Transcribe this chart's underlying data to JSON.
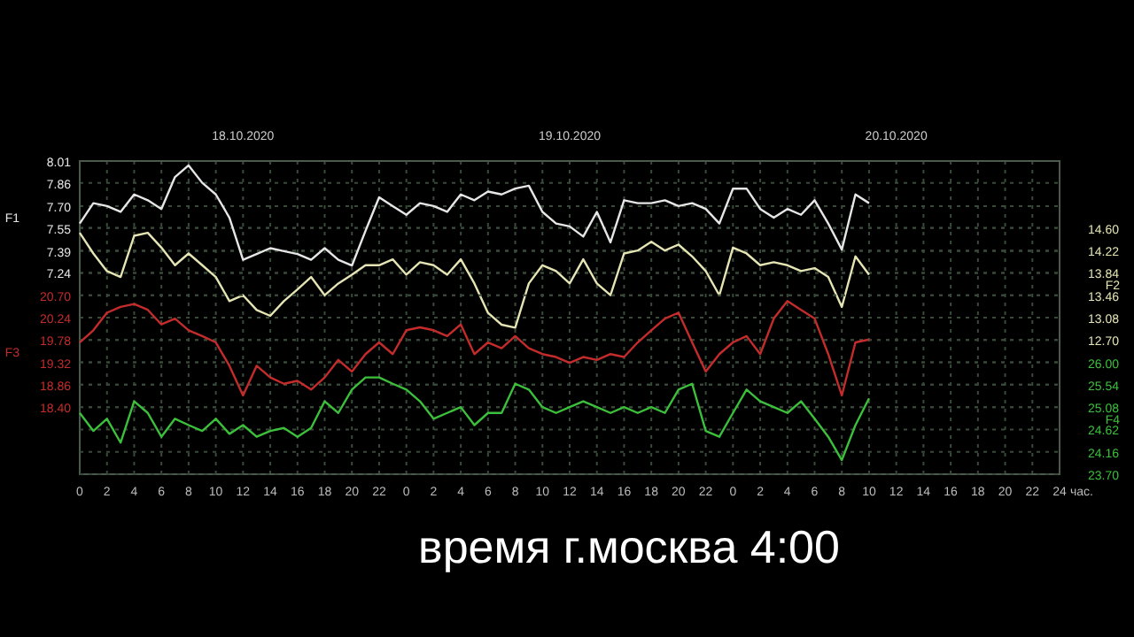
{
  "chart_data": [
    {
      "type": "line",
      "annotations": [
        "время г.москва 4:00"
      ],
      "ylabel": "F1",
      "y2label": "F2",
      "x": [
        "2020-10-18T00:00",
        "2020-10-18T01:00",
        "2020-10-18T02:00",
        "2020-10-18T03:00",
        "2020-10-18T04:00",
        "2020-10-18T05:00",
        "2020-10-18T06:00",
        "2020-10-18T07:00",
        "2020-10-18T08:00",
        "2020-10-18T09:00",
        "2020-10-18T10:00",
        "2020-10-18T11:00",
        "2020-10-18T12:00",
        "2020-10-18T13:00",
        "2020-10-18T14:00",
        "2020-10-18T15:00",
        "2020-10-18T16:00",
        "2020-10-18T17:00",
        "2020-10-18T18:00",
        "2020-10-18T19:00",
        "2020-10-18T20:00",
        "2020-10-18T21:00",
        "2020-10-18T22:00",
        "2020-10-18T23:00",
        "2020-10-19T00:00",
        "2020-10-19T01:00",
        "2020-10-19T02:00",
        "2020-10-19T03:00",
        "2020-10-19T04:00",
        "2020-10-19T05:00",
        "2020-10-19T06:00",
        "2020-10-19T07:00",
        "2020-10-19T08:00",
        "2020-10-19T09:00",
        "2020-10-19T10:00",
        "2020-10-19T11:00",
        "2020-10-19T12:00",
        "2020-10-19T13:00",
        "2020-10-19T14:00",
        "2020-10-19T15:00",
        "2020-10-19T16:00",
        "2020-10-19T17:00",
        "2020-10-19T18:00",
        "2020-10-19T19:00",
        "2020-10-19T20:00",
        "2020-10-19T21:00",
        "2020-10-19T22:00",
        "2020-10-19T23:00",
        "2020-10-20T00:00",
        "2020-10-20T01:00",
        "2020-10-20T02:00",
        "2020-10-20T03:00",
        "2020-10-20T04:00",
        "2020-10-20T05:00",
        "2020-10-20T06:00",
        "2020-10-20T07:00",
        "2020-10-20T08:00",
        "2020-10-20T09:00",
        "2020-10-20T10:00"
      ],
      "xlim": [
        "2020-10-18T00:00",
        "2020-10-21T00:00"
      ],
      "xticks": [
        {
          "value": "2020-10-18T00:00",
          "label": "0"
        },
        {
          "value": "2020-10-18T02:00",
          "label": "2"
        },
        {
          "value": "2020-10-18T04:00",
          "label": "4"
        },
        {
          "value": "2020-10-18T06:00",
          "label": "6"
        },
        {
          "value": "2020-10-18T08:00",
          "label": "8"
        },
        {
          "value": "2020-10-18T10:00",
          "label": "10"
        },
        {
          "value": "2020-10-18T12:00",
          "label": "12"
        },
        {
          "value": "2020-10-18T14:00",
          "label": "14"
        },
        {
          "value": "2020-10-18T16:00",
          "label": "16"
        },
        {
          "value": "2020-10-18T18:00",
          "label": "18"
        },
        {
          "value": "2020-10-18T20:00",
          "label": "20"
        },
        {
          "value": "2020-10-18T22:00",
          "label": "22"
        },
        {
          "value": "2020-10-19T00:00",
          "label": "0"
        },
        {
          "value": "2020-10-19T02:00",
          "label": "2"
        },
        {
          "value": "2020-10-19T04:00",
          "label": "4"
        },
        {
          "value": "2020-10-19T06:00",
          "label": "6"
        },
        {
          "value": "2020-10-19T08:00",
          "label": "8"
        },
        {
          "value": "2020-10-19T10:00",
          "label": "10"
        },
        {
          "value": "2020-10-19T12:00",
          "label": "12"
        },
        {
          "value": "2020-10-19T14:00",
          "label": "14"
        },
        {
          "value": "2020-10-19T16:00",
          "label": "16"
        },
        {
          "value": "2020-10-19T18:00",
          "label": "18"
        },
        {
          "value": "2020-10-19T20:00",
          "label": "20"
        },
        {
          "value": "2020-10-19T22:00",
          "label": "22"
        },
        {
          "value": "2020-10-20T00:00",
          "label": "0"
        },
        {
          "value": "2020-10-20T02:00",
          "label": "2"
        },
        {
          "value": "2020-10-20T04:00",
          "label": "4"
        },
        {
          "value": "2020-10-20T06:00",
          "label": "6"
        },
        {
          "value": "2020-10-20T08:00",
          "label": "8"
        },
        {
          "value": "2020-10-20T10:00",
          "label": "10"
        },
        {
          "value": "2020-10-20T12:00",
          "label": "12"
        },
        {
          "value": "2020-10-20T14:00",
          "label": "14"
        },
        {
          "value": "2020-10-20T16:00",
          "label": "16"
        },
        {
          "value": "2020-10-20T18:00",
          "label": "18"
        },
        {
          "value": "2020-10-20T20:00",
          "label": "20"
        },
        {
          "value": "2020-10-20T22:00",
          "label": "22"
        },
        {
          "value": "2020-10-21T00:00",
          "label": "24"
        }
      ],
      "xlabel": "час.",
      "x2lim": [
        "2020-10-18T00:00",
        "2020-10-21T00:00"
      ],
      "x2ticks": [
        {
          "value": "2020-10-18T12:00",
          "label": "18.10.2020"
        },
        {
          "value": "2020-10-19T12:00",
          "label": "19.10.2020"
        },
        {
          "value": "2020-10-20T12:00",
          "label": "20.10.2020"
        }
      ],
      "ylim": [
        5.854,
        8.01
      ],
      "yticks": [
        {
          "value": 8.01,
          "label": "8.01"
        },
        {
          "value": 7.86,
          "label": "7.86"
        },
        {
          "value": 7.7,
          "label": "7.70"
        },
        {
          "value": 7.55,
          "label": "7.55"
        },
        {
          "value": 7.39,
          "label": "7.39"
        },
        {
          "value": 7.24,
          "label": "7.24"
        }
      ],
      "y2lim": [
        10.42,
        15.74
      ],
      "y2ticks": [
        {
          "value": 14.6,
          "label": "14.60"
        },
        {
          "value": 14.22,
          "label": "14.22"
        },
        {
          "value": 13.84,
          "label": "13.84"
        },
        {
          "value": 13.46,
          "label": "13.46"
        },
        {
          "value": 13.08,
          "label": "13.08"
        },
        {
          "value": 12.7,
          "label": "12.70"
        }
      ],
      "grid": true,
      "series": [
        {
          "axis": "y",
          "color": "#e6e6e6",
          "values": [
            7.58,
            7.72,
            7.7,
            7.66,
            7.78,
            7.74,
            7.68,
            7.9,
            7.98,
            7.86,
            7.78,
            7.62,
            7.33,
            7.37,
            7.41,
            7.39,
            7.37,
            7.33,
            7.41,
            7.33,
            7.29,
            7.53,
            7.76,
            7.7,
            7.64,
            7.72,
            7.7,
            7.66,
            7.78,
            7.74,
            7.8,
            7.78,
            7.82,
            7.84,
            7.66,
            7.58,
            7.56,
            7.49,
            7.66,
            7.45,
            7.74,
            7.72,
            7.72,
            7.74,
            7.7,
            7.72,
            7.68,
            7.58,
            7.82,
            7.82,
            7.68,
            7.62,
            7.68,
            7.64,
            7.74,
            7.58,
            7.4,
            7.78,
            7.72
          ]
        },
        {
          "axis": "y2",
          "color": "#e4e4b4",
          "values": [
            14.52,
            14.17,
            13.87,
            13.77,
            14.47,
            14.52,
            14.27,
            13.97,
            14.17,
            13.97,
            13.77,
            13.36,
            13.46,
            13.21,
            13.11,
            13.36,
            13.56,
            13.77,
            13.46,
            13.66,
            13.81,
            13.97,
            13.97,
            14.07,
            13.81,
            14.02,
            13.97,
            13.81,
            14.07,
            13.66,
            13.16,
            12.96,
            12.91,
            13.66,
            13.97,
            13.87,
            13.66,
            14.07,
            13.66,
            13.46,
            14.17,
            14.22,
            14.37,
            14.22,
            14.32,
            14.12,
            13.87,
            13.46,
            14.27,
            14.17,
            13.97,
            14.02,
            13.97,
            13.87,
            13.92,
            13.77,
            13.26,
            14.12,
            13.81
          ]
        }
      ]
    },
    {
      "type": "line",
      "tick_labels": "y",
      "ylabel": "F3",
      "y2label": "F4",
      "x": [
        "2020-10-18T00:00",
        "2020-10-18T01:00",
        "2020-10-18T02:00",
        "2020-10-18T03:00",
        "2020-10-18T04:00",
        "2020-10-18T05:00",
        "2020-10-18T06:00",
        "2020-10-18T07:00",
        "2020-10-18T08:00",
        "2020-10-18T09:00",
        "2020-10-18T10:00",
        "2020-10-18T11:00",
        "2020-10-18T12:00",
        "2020-10-18T13:00",
        "2020-10-18T14:00",
        "2020-10-18T15:00",
        "2020-10-18T16:00",
        "2020-10-18T17:00",
        "2020-10-18T18:00",
        "2020-10-18T19:00",
        "2020-10-18T20:00",
        "2020-10-18T21:00",
        "2020-10-18T22:00",
        "2020-10-18T23:00",
        "2020-10-19T00:00",
        "2020-10-19T01:00",
        "2020-10-19T02:00",
        "2020-10-19T03:00",
        "2020-10-19T04:00",
        "2020-10-19T05:00",
        "2020-10-19T06:00",
        "2020-10-19T07:00",
        "2020-10-19T08:00",
        "2020-10-19T09:00",
        "2020-10-19T10:00",
        "2020-10-19T11:00",
        "2020-10-19T12:00",
        "2020-10-19T13:00",
        "2020-10-19T14:00",
        "2020-10-19T15:00",
        "2020-10-19T16:00",
        "2020-10-19T17:00",
        "2020-10-19T18:00",
        "2020-10-19T19:00",
        "2020-10-19T20:00",
        "2020-10-19T21:00",
        "2020-10-19T22:00",
        "2020-10-19T23:00",
        "2020-10-20T00:00",
        "2020-10-20T01:00",
        "2020-10-20T02:00",
        "2020-10-20T03:00",
        "2020-10-20T04:00",
        "2020-10-20T05:00",
        "2020-10-20T06:00",
        "2020-10-20T07:00",
        "2020-10-20T08:00",
        "2020-10-20T09:00",
        "2020-10-20T10:00"
      ],
      "xlim": [
        "2020-10-18T00:00",
        "2020-10-21T00:00"
      ],
      "ylim": [
        17.02,
        23.46
      ],
      "yticks": [
        {
          "value": 20.7,
          "label": "20.70"
        },
        {
          "value": 20.24,
          "label": "20.24"
        },
        {
          "value": 19.78,
          "label": "19.78"
        },
        {
          "value": 19.32,
          "label": "19.32"
        },
        {
          "value": 18.86,
          "label": "18.86"
        },
        {
          "value": 18.4,
          "label": "18.40"
        }
      ],
      "y2lim": [
        23.7,
        30.14
      ],
      "y2ticks": [
        {
          "value": 26.0,
          "label": "26.00"
        },
        {
          "value": 25.54,
          "label": "25.54"
        },
        {
          "value": 25.08,
          "label": "25.08"
        },
        {
          "value": 24.62,
          "label": "24.62"
        },
        {
          "value": 24.16,
          "label": "24.16"
        },
        {
          "value": 23.7,
          "label": "23.70"
        }
      ],
      "grid": "y",
      "series": [
        {
          "axis": "y",
          "color": "#c42c2c",
          "values": [
            19.73,
            19.98,
            20.34,
            20.46,
            20.52,
            20.4,
            20.1,
            20.22,
            19.98,
            19.86,
            19.73,
            19.25,
            18.64,
            19.25,
            19.01,
            18.88,
            18.94,
            18.76,
            19.01,
            19.37,
            19.13,
            19.49,
            19.73,
            19.49,
            19.98,
            20.04,
            19.98,
            19.86,
            20.1,
            19.49,
            19.73,
            19.61,
            19.86,
            19.61,
            19.49,
            19.43,
            19.31,
            19.43,
            19.37,
            19.49,
            19.43,
            19.73,
            19.98,
            20.22,
            20.34,
            19.73,
            19.13,
            19.49,
            19.73,
            19.86,
            19.49,
            20.22,
            20.58,
            20.4,
            20.22,
            19.49,
            18.64,
            19.73,
            19.79
          ]
        },
        {
          "axis": "y2",
          "color": "#3cc03c",
          "values": [
            24.96,
            24.59,
            24.84,
            24.35,
            25.2,
            24.96,
            24.47,
            24.84,
            24.71,
            24.59,
            24.84,
            24.53,
            24.71,
            24.47,
            24.59,
            24.65,
            24.47,
            24.65,
            25.2,
            24.96,
            25.44,
            25.69,
            25.69,
            25.56,
            25.44,
            25.2,
            24.84,
            24.96,
            25.08,
            24.71,
            24.96,
            24.96,
            25.56,
            25.44,
            25.08,
            24.96,
            25.08,
            25.2,
            25.08,
            24.96,
            25.08,
            24.96,
            25.08,
            24.96,
            25.44,
            25.56,
            24.59,
            24.47,
            24.96,
            25.44,
            25.2,
            25.08,
            24.96,
            25.2,
            24.84,
            24.47,
            23.99,
            24.71,
            25.26
          ]
        }
      ]
    }
  ]
}
